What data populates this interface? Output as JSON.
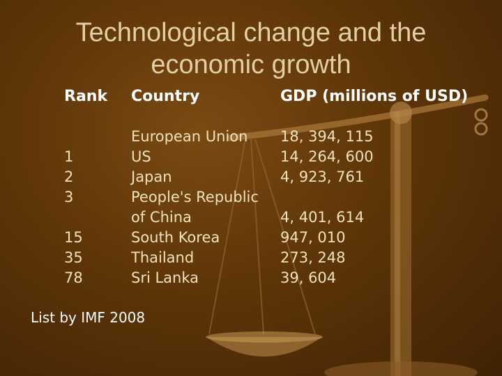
{
  "slide": {
    "title_line1": "Technological change and the",
    "title_line2": "economic growth",
    "headers": {
      "rank": "Rank",
      "country": "Country",
      "gdp": "GDP (millions of USD)"
    },
    "rows": [
      {
        "rank": "",
        "country": "European Union",
        "gdp": "18, 394, 115"
      },
      {
        "rank": "1",
        "country": "US",
        "gdp": "14, 264, 600"
      },
      {
        "rank": "2",
        "country": "Japan",
        "gdp": "4, 923, 761"
      },
      {
        "rank": "3",
        "country": "People's Republic",
        "gdp": ""
      },
      {
        "rank": "",
        "country": "of China",
        "gdp": "4, 401, 614"
      },
      {
        "rank": "15",
        "country": "South Korea",
        "gdp": "947, 010"
      },
      {
        "rank": "35",
        "country": "Thailand",
        "gdp": "273, 248"
      },
      {
        "rank": "78",
        "country": "Sri Lanka",
        "gdp": "39, 604"
      }
    ],
    "source_note": "List by IMF 2008",
    "background_image": "balance-scale-icon",
    "colors": {
      "background": "#5e3508",
      "title": "#e2cfa6",
      "header": "#ffffff",
      "body_text": "#f2e3be"
    }
  }
}
